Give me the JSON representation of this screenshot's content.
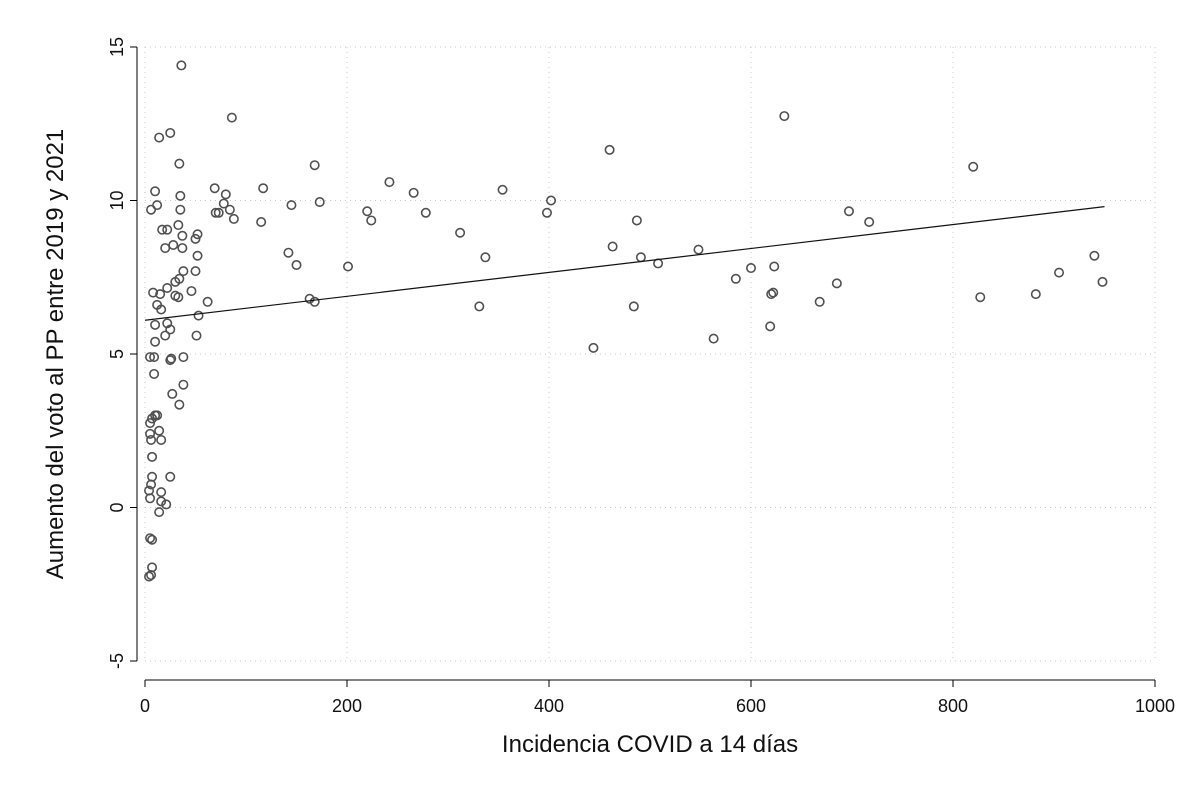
{
  "chart_data": {
    "type": "scatter",
    "xlabel": "Incidencia COVID a 14 días",
    "ylabel": "Aumento del voto al PP entre 2019 y 2021",
    "xlim": [
      0,
      1000
    ],
    "ylim": [
      -5,
      15
    ],
    "xticks": [
      0,
      200,
      400,
      600,
      800,
      1000
    ],
    "yticks": [
      -5,
      0,
      5,
      10,
      15
    ],
    "xtick_labels": [
      "0",
      "200",
      "400",
      "600",
      "800",
      "1000"
    ],
    "ytick_labels": [
      "-5",
      "0",
      "5",
      "10",
      "15"
    ],
    "grid": true,
    "series": [
      {
        "points": [
          [
            36,
            14.4
          ],
          [
            86,
            12.7
          ],
          [
            25,
            12.2
          ],
          [
            14,
            12.05
          ],
          [
            34,
            11.2
          ],
          [
            69,
            10.4
          ],
          [
            80,
            10.2
          ],
          [
            35,
            10.15
          ],
          [
            10,
            10.3
          ],
          [
            12,
            9.85
          ],
          [
            6,
            9.7
          ],
          [
            35,
            9.7
          ],
          [
            78,
            9.9
          ],
          [
            84,
            9.7
          ],
          [
            70,
            9.6
          ],
          [
            73,
            9.6
          ],
          [
            88,
            9.4
          ],
          [
            33,
            9.2
          ],
          [
            22,
            9.05
          ],
          [
            17,
            9.05
          ],
          [
            37,
            8.85
          ],
          [
            52,
            8.9
          ],
          [
            50,
            8.75
          ],
          [
            28,
            8.55
          ],
          [
            20,
            8.45
          ],
          [
            37,
            8.45
          ],
          [
            52,
            8.2
          ],
          [
            30,
            7.35
          ],
          [
            38,
            7.7
          ],
          [
            50,
            7.7
          ],
          [
            34,
            7.45
          ],
          [
            22,
            7.15
          ],
          [
            8,
            7.0
          ],
          [
            15,
            6.95
          ],
          [
            30,
            6.9
          ],
          [
            33,
            6.85
          ],
          [
            46,
            7.05
          ],
          [
            62,
            6.7
          ],
          [
            12,
            6.6
          ],
          [
            16,
            6.45
          ],
          [
            53,
            6.25
          ],
          [
            22,
            6.0
          ],
          [
            10,
            5.95
          ],
          [
            25,
            5.8
          ],
          [
            20,
            5.6
          ],
          [
            51,
            5.6
          ],
          [
            10,
            5.4
          ],
          [
            5,
            4.9
          ],
          [
            9,
            4.9
          ],
          [
            25,
            4.8
          ],
          [
            26,
            4.85
          ],
          [
            38,
            4.9
          ],
          [
            9,
            4.35
          ],
          [
            38,
            4.0
          ],
          [
            27,
            3.7
          ],
          [
            34,
            3.35
          ],
          [
            10,
            3.0
          ],
          [
            12,
            3.0
          ],
          [
            7,
            2.9
          ],
          [
            5,
            2.75
          ],
          [
            14,
            2.5
          ],
          [
            5,
            2.4
          ],
          [
            6,
            2.2
          ],
          [
            16,
            2.2
          ],
          [
            7,
            1.65
          ],
          [
            7,
            1.0
          ],
          [
            25,
            1.0
          ],
          [
            6,
            0.75
          ],
          [
            4,
            0.55
          ],
          [
            16,
            0.5
          ],
          [
            5,
            0.3
          ],
          [
            16,
            0.2
          ],
          [
            21,
            0.1
          ],
          [
            14,
            -0.15
          ],
          [
            5,
            -1.0
          ],
          [
            7,
            -1.05
          ],
          [
            7,
            -1.95
          ],
          [
            6,
            -2.2
          ],
          [
            4,
            -2.25
          ],
          [
            115,
            9.3
          ],
          [
            117,
            10.4
          ],
          [
            145,
            9.85
          ],
          [
            173,
            9.95
          ],
          [
            168,
            11.15
          ],
          [
            142,
            8.3
          ],
          [
            150,
            7.9
          ],
          [
            163,
            6.8
          ],
          [
            168,
            6.7
          ],
          [
            201,
            7.85
          ],
          [
            220,
            9.65
          ],
          [
            224,
            9.35
          ],
          [
            242,
            10.6
          ],
          [
            266,
            10.25
          ],
          [
            278,
            9.6
          ],
          [
            312,
            8.95
          ],
          [
            331,
            6.55
          ],
          [
            337,
            8.15
          ],
          [
            354,
            10.35
          ],
          [
            398,
            9.6
          ],
          [
            402,
            10.0
          ],
          [
            444,
            5.2
          ],
          [
            460,
            11.65
          ],
          [
            463,
            8.5
          ],
          [
            487,
            9.35
          ],
          [
            484,
            6.55
          ],
          [
            491,
            8.15
          ],
          [
            508,
            7.95
          ],
          [
            548,
            8.4
          ],
          [
            563,
            5.5
          ],
          [
            585,
            7.45
          ],
          [
            600,
            7.8
          ],
          [
            619,
            5.9
          ],
          [
            620,
            6.95
          ],
          [
            622,
            7.0
          ],
          [
            623,
            7.85
          ],
          [
            633,
            12.75
          ],
          [
            668,
            6.7
          ],
          [
            685,
            7.3
          ],
          [
            697,
            9.65
          ],
          [
            717,
            9.3
          ],
          [
            820,
            11.1
          ],
          [
            827,
            6.85
          ],
          [
            882,
            6.95
          ],
          [
            905,
            7.65
          ],
          [
            940,
            8.2
          ],
          [
            948,
            7.35
          ]
        ]
      }
    ],
    "fit_line": {
      "x": [
        0,
        950
      ],
      "y": [
        6.1,
        9.8
      ]
    }
  }
}
